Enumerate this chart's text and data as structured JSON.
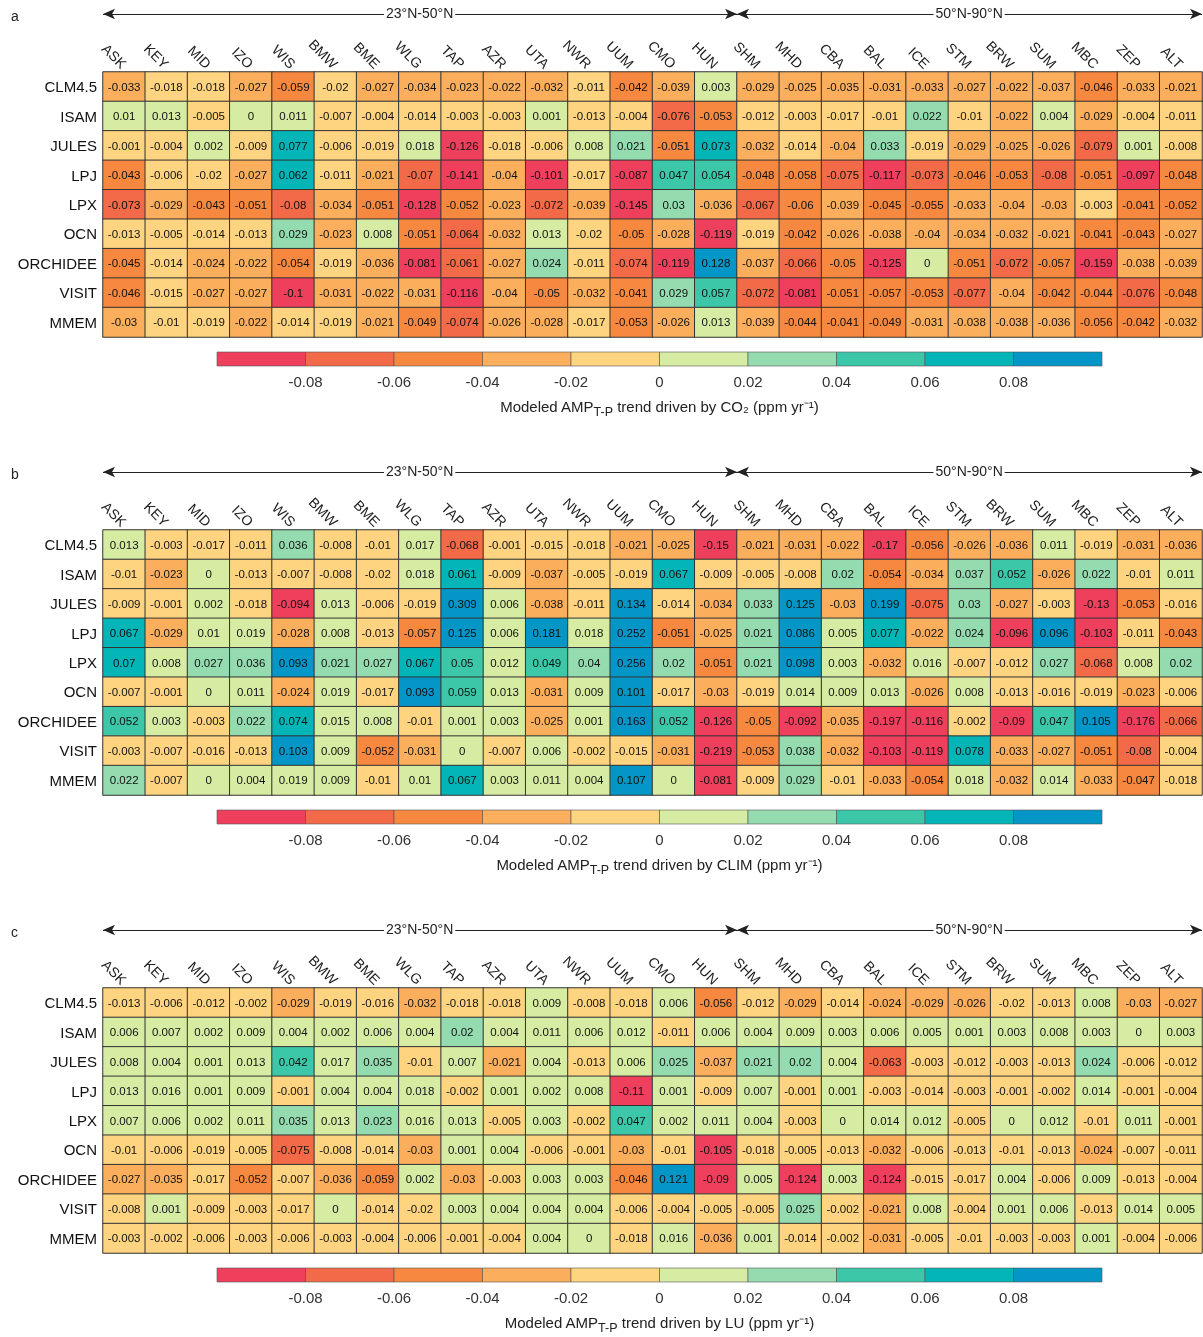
{
  "chart_data": [
    {
      "type": "heatmap",
      "title": "a",
      "categories": [
        "ASK",
        "KEY",
        "MID",
        "IZO",
        "WIS",
        "BMW",
        "BME",
        "WLG",
        "TAP",
        "AZR",
        "UTA",
        "NWR",
        "UUM",
        "CMO",
        "HUN",
        "SHM",
        "MHD",
        "CBA",
        "BAL",
        "ICE",
        "STM",
        "BRW",
        "SUM",
        "MBC",
        "ZEP",
        "ALT"
      ],
      "y_categories": [
        "CLM4.5",
        "ISAM",
        "JULES",
        "LPJ",
        "LPX",
        "OCN",
        "ORCHIDEE",
        "VISIT",
        "MMEM"
      ],
      "cells": [
        [
          -0.033,
          -0.018,
          -0.018,
          -0.027,
          -0.059,
          -0.02,
          -0.027,
          -0.034,
          -0.023,
          -0.022,
          -0.032,
          -0.011,
          -0.042,
          -0.039,
          0.003,
          -0.029,
          -0.025,
          -0.035,
          -0.031,
          -0.033,
          -0.027,
          -0.022,
          -0.037,
          -0.046,
          -0.033,
          -0.021
        ],
        [
          0.01,
          0.013,
          -0.005,
          0,
          0.011,
          -0.007,
          -0.004,
          -0.014,
          -0.003,
          -0.003,
          0.001,
          -0.013,
          -0.004,
          -0.076,
          -0.053,
          -0.012,
          -0.003,
          -0.017,
          -0.01,
          0.022,
          -0.01,
          -0.022,
          0.004,
          -0.029,
          -0.004,
          -0.011
        ],
        [
          -0.001,
          -0.004,
          0.002,
          -0.009,
          0.077,
          -0.006,
          -0.019,
          0.018,
          -0.126,
          -0.018,
          -0.006,
          0.008,
          0.021,
          -0.051,
          0.073,
          -0.032,
          -0.014,
          -0.04,
          0.033,
          -0.019,
          -0.029,
          -0.025,
          -0.026,
          -0.079,
          0.001,
          -0.008
        ],
        [
          -0.043,
          -0.006,
          -0.02,
          -0.027,
          0.062,
          -0.011,
          -0.021,
          -0.07,
          -0.141,
          -0.04,
          -0.101,
          -0.017,
          -0.087,
          0.047,
          0.054,
          -0.048,
          -0.058,
          -0.075,
          -0.117,
          -0.073,
          -0.046,
          -0.053,
          -0.08,
          -0.051,
          -0.097,
          -0.048
        ],
        [
          -0.073,
          -0.029,
          -0.043,
          -0.051,
          -0.08,
          -0.034,
          -0.051,
          -0.128,
          -0.052,
          -0.023,
          -0.072,
          -0.039,
          -0.145,
          0.03,
          -0.036,
          -0.067,
          -0.06,
          -0.039,
          -0.045,
          -0.055,
          -0.033,
          -0.04,
          -0.03,
          -0.003,
          -0.041,
          -0.052
        ],
        [
          -0.013,
          -0.005,
          -0.014,
          -0.013,
          0.029,
          -0.023,
          0.008,
          -0.051,
          -0.064,
          -0.032,
          0.013,
          -0.02,
          -0.05,
          -0.028,
          -0.119,
          -0.019,
          -0.042,
          -0.026,
          -0.038,
          -0.04,
          -0.034,
          -0.032,
          -0.021,
          -0.041,
          -0.043,
          -0.027
        ],
        [
          -0.045,
          -0.014,
          -0.024,
          -0.022,
          -0.054,
          -0.019,
          -0.036,
          -0.081,
          -0.061,
          -0.027,
          0.024,
          -0.011,
          -0.074,
          -0.119,
          0.128,
          -0.037,
          -0.066,
          -0.05,
          -0.125,
          0,
          -0.051,
          -0.072,
          -0.057,
          -0.159,
          -0.038,
          -0.039
        ],
        [
          -0.046,
          -0.015,
          -0.027,
          -0.027,
          -0.1,
          -0.031,
          -0.022,
          -0.031,
          -0.116,
          -0.04,
          -0.05,
          -0.032,
          -0.041,
          0.029,
          0.057,
          -0.072,
          -0.081,
          -0.051,
          -0.057,
          -0.053,
          -0.077,
          -0.04,
          -0.042,
          -0.044,
          -0.076,
          -0.048
        ],
        [
          -0.03,
          -0.01,
          -0.019,
          -0.022,
          -0.014,
          -0.019,
          -0.021,
          -0.049,
          -0.074,
          -0.026,
          -0.028,
          -0.017,
          -0.053,
          -0.026,
          0.013,
          -0.039,
          -0.044,
          -0.041,
          -0.049,
          -0.031,
          -0.038,
          -0.038,
          -0.036,
          -0.056,
          -0.042,
          -0.032
        ]
      ],
      "data_labels": true,
      "clim": [
        -0.1,
        0.1
      ],
      "cticks": [
        -0.08,
        -0.06,
        -0.04,
        -0.02,
        0,
        0.02,
        0.04,
        0.06,
        0.08
      ],
      "colors": [
        "#ee3f5d",
        "#f26a47",
        "#f6893f",
        "#fbaf5d",
        "#fed480",
        "#d6eca3",
        "#94dcb0",
        "#3cc8a8",
        "#04b5b7",
        "#0496c7"
      ],
      "clabel": "Modeled AMP$_{T-P}$ trend driven by CO₂ (ppm yr⁻¹)",
      "annotations": [
        "23°N-50°N",
        "50°N-90°N"
      ]
    },
    {
      "type": "heatmap",
      "title": "b",
      "categories": [
        "ASK",
        "KEY",
        "MID",
        "IZO",
        "WIS",
        "BMW",
        "BME",
        "WLG",
        "TAP",
        "AZR",
        "UTA",
        "NWR",
        "UUM",
        "CMO",
        "HUN",
        "SHM",
        "MHD",
        "CBA",
        "BAL",
        "ICE",
        "STM",
        "BRW",
        "SUM",
        "MBC",
        "ZEP",
        "ALT"
      ],
      "y_categories": [
        "CLM4.5",
        "ISAM",
        "JULES",
        "LPJ",
        "LPX",
        "OCN",
        "ORCHIDEE",
        "VISIT",
        "MMEM"
      ],
      "cells": [
        [
          0.013,
          -0.003,
          -0.017,
          -0.011,
          0.036,
          -0.008,
          -0.01,
          0.017,
          -0.068,
          -0.001,
          -0.015,
          -0.018,
          -0.021,
          -0.025,
          -0.15,
          -0.021,
          -0.031,
          -0.022,
          -0.17,
          -0.056,
          -0.026,
          -0.036,
          0.011,
          -0.019,
          -0.031,
          -0.036
        ],
        [
          -0.01,
          -0.023,
          0,
          -0.013,
          -0.007,
          -0.008,
          -0.02,
          0.018,
          0.061,
          -0.009,
          -0.037,
          -0.005,
          -0.019,
          0.067,
          -0.009,
          -0.005,
          -0.008,
          0.02,
          -0.054,
          -0.034,
          0.037,
          0.052,
          -0.026,
          0.022,
          -0.01,
          0.011
        ],
        [
          -0.009,
          -0.001,
          0.002,
          -0.018,
          -0.094,
          0.013,
          -0.006,
          -0.019,
          0.309,
          0.006,
          -0.038,
          -0.011,
          0.134,
          -0.014,
          -0.034,
          0.033,
          0.125,
          -0.03,
          0.199,
          -0.075,
          0.03,
          -0.027,
          -0.003,
          -0.13,
          -0.053,
          -0.016
        ],
        [
          0.067,
          -0.029,
          0.01,
          0.019,
          -0.028,
          0.008,
          -0.013,
          -0.057,
          0.125,
          0.006,
          0.181,
          0.018,
          0.252,
          -0.051,
          -0.025,
          0.021,
          0.086,
          0.005,
          0.077,
          -0.022,
          0.024,
          -0.096,
          0.096,
          -0.103,
          -0.011,
          -0.043
        ],
        [
          0.07,
          0.008,
          0.027,
          0.036,
          0.093,
          0.021,
          0.027,
          0.067,
          0.05,
          0.012,
          0.049,
          0.04,
          0.256,
          0.02,
          -0.051,
          0.021,
          0.098,
          0.003,
          -0.032,
          0.016,
          -0.007,
          -0.012,
          0.027,
          -0.068,
          0.008,
          0.02
        ],
        [
          -0.007,
          -0.001,
          0,
          0.011,
          -0.024,
          0.019,
          -0.017,
          0.093,
          0.059,
          0.013,
          -0.031,
          0.009,
          0.101,
          -0.017,
          -0.03,
          -0.019,
          0.014,
          0.009,
          0.013,
          -0.026,
          0.008,
          -0.013,
          -0.016,
          -0.019,
          -0.023,
          -0.006
        ],
        [
          0.052,
          0.003,
          -0.003,
          0.022,
          0.074,
          0.015,
          0.008,
          -0.01,
          0.001,
          0.003,
          -0.025,
          0.001,
          0.163,
          0.052,
          -0.126,
          -0.05,
          -0.092,
          -0.035,
          -0.197,
          -0.116,
          -0.002,
          -0.09,
          0.047,
          0.105,
          -0.176,
          -0.066
        ],
        [
          -0.003,
          -0.007,
          -0.016,
          -0.013,
          0.103,
          0.009,
          -0.052,
          -0.031,
          0,
          -0.007,
          0.006,
          -0.002,
          -0.015,
          -0.031,
          -0.219,
          -0.053,
          0.038,
          -0.032,
          -0.103,
          -0.119,
          0.078,
          -0.033,
          -0.027,
          -0.051,
          -0.08,
          -0.004
        ],
        [
          0.022,
          -0.007,
          0,
          0.004,
          0.019,
          0.009,
          -0.01,
          0.01,
          0.067,
          0.003,
          0.011,
          0.004,
          0.107,
          0,
          -0.081,
          -0.009,
          0.029,
          -0.01,
          -0.033,
          -0.054,
          0.018,
          -0.032,
          0.014,
          -0.033,
          -0.047,
          -0.018
        ]
      ],
      "data_labels": true,
      "clim": [
        -0.1,
        0.1
      ],
      "cticks": [
        -0.08,
        -0.06,
        -0.04,
        -0.02,
        0,
        0.02,
        0.04,
        0.06,
        0.08
      ],
      "colors": [
        "#ee3f5d",
        "#f26a47",
        "#f6893f",
        "#fbaf5d",
        "#fed480",
        "#d6eca3",
        "#94dcb0",
        "#3cc8a8",
        "#04b5b7",
        "#0496c7"
      ],
      "clabel": "Modeled AMP$_{T-P}$ trend driven by CLIM (ppm yr⁻¹)",
      "annotations": [
        "23°N-50°N",
        "50°N-90°N"
      ]
    },
    {
      "type": "heatmap",
      "title": "c",
      "categories": [
        "ASK",
        "KEY",
        "MID",
        "IZO",
        "WIS",
        "BMW",
        "BME",
        "WLG",
        "TAP",
        "AZR",
        "UTA",
        "NWR",
        "UUM",
        "CMO",
        "HUN",
        "SHM",
        "MHD",
        "CBA",
        "BAL",
        "ICE",
        "STM",
        "BRW",
        "SUM",
        "MBC",
        "ZEP",
        "ALT"
      ],
      "y_categories": [
        "CLM4.5",
        "ISAM",
        "JULES",
        "LPJ",
        "LPX",
        "OCN",
        "ORCHIDEE",
        "VISIT",
        "MMEM"
      ],
      "cells": [
        [
          -0.013,
          -0.006,
          -0.012,
          -0.002,
          -0.029,
          -0.019,
          -0.016,
          -0.032,
          -0.018,
          -0.018,
          0.009,
          -0.008,
          -0.018,
          0.006,
          -0.056,
          -0.012,
          -0.029,
          -0.014,
          -0.024,
          -0.029,
          -0.026,
          -0.02,
          -0.013,
          0.008,
          -0.03,
          -0.027
        ],
        [
          0.006,
          0.007,
          0.002,
          0.009,
          0.004,
          0.002,
          0.006,
          0.004,
          0.02,
          0.004,
          0.011,
          0.006,
          0.012,
          -0.011,
          0.006,
          0.004,
          0.009,
          0.003,
          0.006,
          0.005,
          0.001,
          0.003,
          0.008,
          0.003,
          0,
          0.003
        ],
        [
          0.008,
          0.004,
          0.001,
          0.013,
          0.042,
          0.017,
          0.035,
          -0.01,
          0.007,
          -0.021,
          0.004,
          -0.013,
          0.006,
          0.025,
          -0.037,
          0.021,
          0.02,
          0.004,
          -0.063,
          -0.003,
          -0.012,
          -0.003,
          -0.013,
          0.024,
          -0.006,
          -0.012
        ],
        [
          0.013,
          0.016,
          0.001,
          0.009,
          -0.001,
          0.004,
          0.004,
          0.018,
          -0.002,
          0.001,
          0.002,
          0.008,
          -0.11,
          0.001,
          -0.009,
          0.007,
          -0.001,
          0.001,
          -0.003,
          -0.014,
          -0.003,
          -0.001,
          -0.002,
          0.014,
          -0.001,
          -0.004
        ],
        [
          0.007,
          0.006,
          0.002,
          0.011,
          0.035,
          0.013,
          0.023,
          0.016,
          0.013,
          -0.005,
          0.003,
          -0.002,
          0.047,
          0.002,
          0.011,
          0.004,
          -0.003,
          0,
          0.014,
          0.012,
          -0.005,
          0,
          0.012,
          -0.01,
          0.011,
          -0.001
        ],
        [
          -0.01,
          -0.006,
          -0.019,
          -0.005,
          -0.075,
          -0.008,
          -0.014,
          -0.03,
          0.001,
          0.004,
          -0.006,
          -0.001,
          -0.03,
          -0.01,
          -0.105,
          -0.018,
          -0.005,
          -0.013,
          -0.032,
          -0.006,
          -0.013,
          -0.01,
          -0.013,
          -0.024,
          -0.007,
          -0.011
        ],
        [
          -0.027,
          -0.035,
          -0.017,
          -0.052,
          -0.007,
          -0.036,
          -0.059,
          0.002,
          -0.03,
          -0.003,
          0.003,
          0.003,
          -0.046,
          0.121,
          -0.09,
          0.005,
          -0.124,
          0.003,
          -0.124,
          -0.015,
          -0.017,
          0.004,
          -0.006,
          0.009,
          -0.013,
          -0.004
        ],
        [
          -0.008,
          0.001,
          -0.009,
          -0.003,
          -0.017,
          0,
          -0.014,
          -0.02,
          0.003,
          0.004,
          0.004,
          0.004,
          -0.006,
          -0.004,
          -0.005,
          -0.005,
          0.025,
          -0.002,
          -0.021,
          0.008,
          -0.004,
          0.001,
          0.006,
          -0.013,
          0.014,
          0.005
        ],
        [
          -0.003,
          -0.002,
          -0.006,
          -0.003,
          -0.006,
          -0.003,
          -0.004,
          -0.006,
          -0.001,
          -0.004,
          0.004,
          0,
          -0.018,
          0.016,
          -0.036,
          0.001,
          -0.014,
          -0.002,
          -0.031,
          -0.005,
          -0.01,
          -0.003,
          -0.003,
          0.001,
          -0.004,
          -0.006
        ]
      ],
      "data_labels": true,
      "clim": [
        -0.1,
        0.1
      ],
      "cticks": [
        -0.08,
        -0.06,
        -0.04,
        -0.02,
        0,
        0.02,
        0.04,
        0.06,
        0.08
      ],
      "colors": [
        "#ee3f5d",
        "#f26a47",
        "#f6893f",
        "#fbaf5d",
        "#fed480",
        "#d6eca3",
        "#94dcb0",
        "#3cc8a8",
        "#04b5b7",
        "#0496c7"
      ],
      "clabel": "Modeled AMP$_{T-P}$ trend driven by LU (ppm yr⁻¹)",
      "annotations": [
        "23°N-50°N",
        "50°N-90°N"
      ]
    }
  ]
}
